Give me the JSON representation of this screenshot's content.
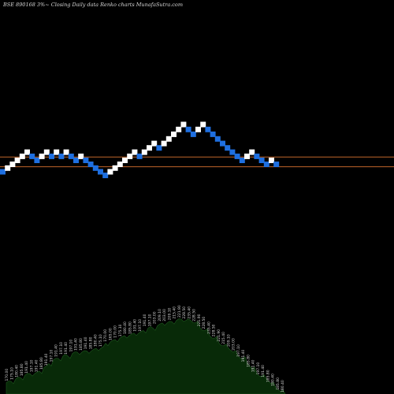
{
  "chart_data": {
    "type": "renko",
    "title": "BSE 890168  3%~  Closing Daily data  Renko  charts MunafaSutra.com",
    "colors": {
      "background": "#000000",
      "up_brick": "#ffffff",
      "down_brick": "#1e6fe0",
      "reference_line": "#c0652a",
      "volume_fill": "#082a08",
      "volume_outline": "#1f5a1f"
    },
    "reference_lines": [
      190.5,
      176.9
    ],
    "y_range": [
      130,
      260
    ],
    "bricks": [
      {
        "dir": "down",
        "price": 170.0
      },
      {
        "dir": "up",
        "price": 175.1
      },
      {
        "dir": "up",
        "price": 180.4
      },
      {
        "dir": "up",
        "price": 185.8
      },
      {
        "dir": "up",
        "price": 191.4
      },
      {
        "dir": "up",
        "price": 197.1
      },
      {
        "dir": "down",
        "price": 191.4
      },
      {
        "dir": "down",
        "price": 185.8
      },
      {
        "dir": "up",
        "price": 191.4
      },
      {
        "dir": "up",
        "price": 197.1
      },
      {
        "dir": "down",
        "price": 191.4
      },
      {
        "dir": "up",
        "price": 197.1
      },
      {
        "dir": "down",
        "price": 191.4
      },
      {
        "dir": "up",
        "price": 197.1
      },
      {
        "dir": "down",
        "price": 191.4
      },
      {
        "dir": "down",
        "price": 185.8
      },
      {
        "dir": "up",
        "price": 191.4
      },
      {
        "dir": "down",
        "price": 185.8
      },
      {
        "dir": "down",
        "price": 180.4
      },
      {
        "dir": "down",
        "price": 175.1
      },
      {
        "dir": "down",
        "price": 170.0
      },
      {
        "dir": "down",
        "price": 165.0
      },
      {
        "dir": "up",
        "price": 170.0
      },
      {
        "dir": "up",
        "price": 175.1
      },
      {
        "dir": "up",
        "price": 180.4
      },
      {
        "dir": "up",
        "price": 185.8
      },
      {
        "dir": "up",
        "price": 191.4
      },
      {
        "dir": "up",
        "price": 197.1
      },
      {
        "dir": "down",
        "price": 191.4
      },
      {
        "dir": "up",
        "price": 197.1
      },
      {
        "dir": "up",
        "price": 203.0
      },
      {
        "dir": "up",
        "price": 209.1
      },
      {
        "dir": "down",
        "price": 203.0
      },
      {
        "dir": "up",
        "price": 209.1
      },
      {
        "dir": "up",
        "price": 215.4
      },
      {
        "dir": "up",
        "price": 221.9
      },
      {
        "dir": "up",
        "price": 228.5
      },
      {
        "dir": "up",
        "price": 235.4
      },
      {
        "dir": "down",
        "price": 228.5
      },
      {
        "dir": "down",
        "price": 221.9
      },
      {
        "dir": "up",
        "price": 228.5
      },
      {
        "dir": "up",
        "price": 235.4
      },
      {
        "dir": "down",
        "price": 228.5
      },
      {
        "dir": "down",
        "price": 221.9
      },
      {
        "dir": "down",
        "price": 215.4
      },
      {
        "dir": "down",
        "price": 209.1
      },
      {
        "dir": "down",
        "price": 203.0
      },
      {
        "dir": "down",
        "price": 197.1
      },
      {
        "dir": "down",
        "price": 191.4
      },
      {
        "dir": "down",
        "price": 185.8
      },
      {
        "dir": "up",
        "price": 191.4
      },
      {
        "dir": "up",
        "price": 197.1
      },
      {
        "dir": "down",
        "price": 191.4
      },
      {
        "dir": "down",
        "price": 185.8
      },
      {
        "dir": "down",
        "price": 180.4
      },
      {
        "dir": "up",
        "price": 185.8
      },
      {
        "dir": "down",
        "price": 180.4
      }
    ],
    "volume_profile": [
      9,
      10,
      12,
      13,
      15,
      16,
      16,
      18,
      21,
      24,
      27,
      28,
      30,
      30,
      32,
      33,
      33,
      34,
      34,
      36,
      36,
      40,
      41,
      43,
      44,
      46,
      46,
      48,
      48,
      50,
      52,
      52,
      54,
      56,
      56,
      57,
      58,
      59,
      58,
      58,
      56,
      52,
      50,
      46,
      44,
      40,
      38,
      36,
      33,
      30,
      28,
      24,
      20,
      16,
      14,
      12,
      8,
      5,
      2,
      0
    ],
    "column_labels": [
      "170.00",
      "175.10",
      "180.40",
      "185.80",
      "191.40",
      "197.10",
      "191.40",
      "185.80",
      "191.40",
      "197.10",
      "191.40",
      "197.10",
      "191.40",
      "197.10",
      "191.40",
      "185.80",
      "191.40",
      "185.80",
      "180.40",
      "175.10",
      "170.00",
      "165.00",
      "170.00",
      "175.10",
      "180.40",
      "185.80",
      "191.40",
      "197.10",
      "191.40",
      "197.10",
      "203.00",
      "209.10",
      "203.00",
      "209.10",
      "215.40",
      "221.90",
      "228.50",
      "235.40",
      "228.50",
      "221.90",
      "228.50",
      "235.40",
      "228.50",
      "221.90",
      "215.40",
      "209.10",
      "203.00",
      "197.10",
      "191.40",
      "185.80",
      "191.40",
      "197.10",
      "191.40",
      "185.80",
      "180.40",
      "185.80",
      "180.40"
    ]
  }
}
